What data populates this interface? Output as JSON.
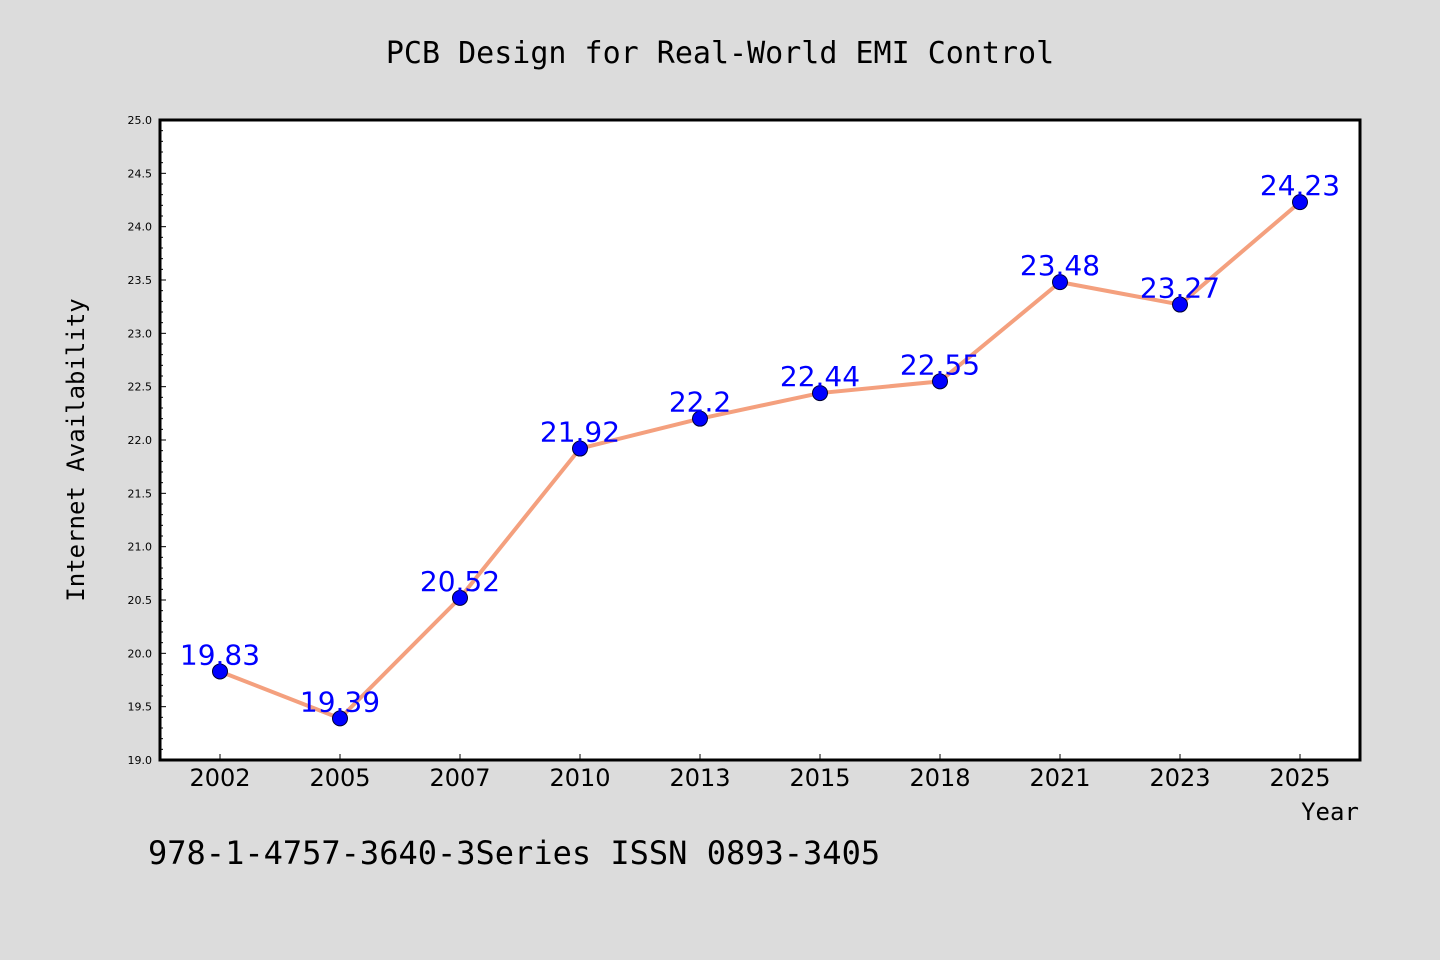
{
  "chart_data": {
    "type": "line",
    "title": "PCB Design for Real-World EMI Control",
    "xlabel": "Year",
    "ylabel": "Internet Availability",
    "categories": [
      "2002",
      "2005",
      "2007",
      "2010",
      "2013",
      "2015",
      "2018",
      "2021",
      "2023",
      "2025"
    ],
    "series": [
      {
        "values": [
          19.83,
          19.39,
          20.52,
          21.92,
          22.2,
          22.44,
          22.55,
          23.48,
          23.27,
          24.23
        ]
      }
    ],
    "data_labels": [
      "19.83",
      "19.39",
      "20.52",
      "21.92",
      "22.2",
      "22.44",
      "22.55",
      "23.48",
      "23.27",
      "24.23"
    ],
    "ylim": [
      19.0,
      25.0
    ],
    "yticks": [
      "19.0",
      "19.5",
      "20.0",
      "20.5",
      "21.0",
      "21.5",
      "22.0",
      "22.5",
      "23.0",
      "23.5",
      "24.0",
      "24.5",
      "25.0"
    ],
    "grid": false,
    "legend": "none",
    "colors": {
      "line": "#f4a07e",
      "marker": "#0000ff",
      "label": "#0000ff",
      "background": "#dcdcdc",
      "plot": "#ffffff"
    }
  },
  "footer": "978-1-4757-3640-3Series ISSN 0893-3405"
}
